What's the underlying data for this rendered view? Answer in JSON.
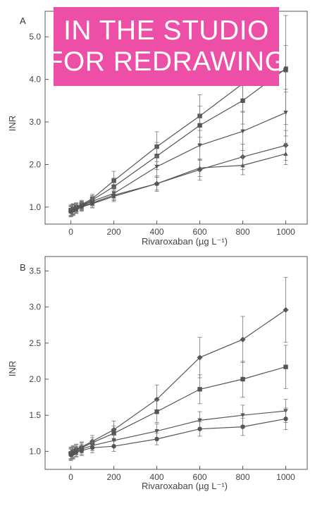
{
  "overlay": {
    "line1": "IN THE STUDIO",
    "line2": "FOR REDRAWING",
    "color": "#ee4fa6"
  },
  "colors": {
    "axis": "#555555",
    "series": "#555555"
  },
  "chart_data": [
    {
      "type": "line",
      "panel_label": "A",
      "xlabel": "Rivaroxaban (µg L⁻¹)",
      "ylabel": "INR",
      "xlim": [
        -120,
        1100
      ],
      "ylim": [
        0.6,
        5.6
      ],
      "xticks": [
        0,
        200,
        400,
        600,
        800,
        1000
      ],
      "xtick_labels": [
        "0",
        "200",
        "400",
        "600",
        "800",
        "1000"
      ],
      "yticks": [
        1.0,
        2.0,
        3.0,
        4.0,
        5.0
      ],
      "ytick_labels": [
        "1.0",
        "2.0",
        "3.0",
        "4.0",
        "5.0"
      ],
      "grid": false,
      "x": [
        0,
        10,
        25,
        50,
        100,
        200,
        400,
        600,
        800,
        1000
      ],
      "series": [
        {
          "marker": "square",
          "values": [
            0.93,
            0.96,
            1.0,
            1.06,
            1.2,
            1.62,
            2.42,
            3.14,
            3.9,
            4.22
          ],
          "err": [
            0.12,
            0.12,
            0.1,
            0.1,
            0.1,
            0.22,
            0.35,
            0.5,
            0.65,
            1.28
          ]
        },
        {
          "marker": "square",
          "values": [
            0.92,
            0.95,
            0.99,
            1.04,
            1.17,
            1.48,
            2.2,
            2.92,
            3.5,
            4.25
          ],
          "err": [
            0.12,
            0.12,
            0.1,
            0.1,
            0.1,
            0.2,
            0.32,
            0.45,
            0.55,
            0.55
          ]
        },
        {
          "marker": "triangle-down",
          "values": [
            0.9,
            0.94,
            0.98,
            1.03,
            1.14,
            1.32,
            1.95,
            2.45,
            2.78,
            3.22
          ],
          "err": [
            0.12,
            0.12,
            0.1,
            0.1,
            0.1,
            0.15,
            0.25,
            0.35,
            0.45,
            0.55
          ]
        },
        {
          "marker": "diamond",
          "values": [
            0.9,
            0.93,
            0.96,
            1.02,
            1.1,
            1.28,
            1.55,
            1.88,
            2.18,
            2.45
          ],
          "err": [
            0.12,
            0.12,
            0.1,
            0.1,
            0.1,
            0.12,
            0.18,
            0.25,
            0.3,
            0.35
          ]
        },
        {
          "marker": "triangle-up",
          "values": [
            0.89,
            0.92,
            0.95,
            1.0,
            1.08,
            1.25,
            1.55,
            1.92,
            1.98,
            2.25
          ],
          "err": [
            0.12,
            0.12,
            0.1,
            0.1,
            0.1,
            0.12,
            0.15,
            0.2,
            0.22,
            0.25
          ]
        }
      ]
    },
    {
      "type": "line",
      "panel_label": "B",
      "xlabel": "Rivaroxaban (µg L⁻¹)",
      "ylabel": "INR",
      "xlim": [
        -120,
        1100
      ],
      "ylim": [
        0.75,
        3.7
      ],
      "xticks": [
        0,
        200,
        400,
        600,
        800,
        1000
      ],
      "xtick_labels": [
        "0",
        "200",
        "400",
        "600",
        "800",
        "1000"
      ],
      "yticks": [
        1.0,
        1.5,
        2.0,
        2.5,
        3.0,
        3.5
      ],
      "ytick_labels": [
        "1.0",
        "1.5",
        "2.0",
        "2.5",
        "3.0",
        "3.5"
      ],
      "grid": false,
      "x": [
        0,
        10,
        25,
        50,
        100,
        200,
        400,
        600,
        800,
        1000
      ],
      "series": [
        {
          "marker": "diamond",
          "values": [
            0.98,
            1.0,
            1.03,
            1.06,
            1.14,
            1.3,
            1.72,
            2.3,
            2.55,
            2.96
          ],
          "err": [
            0.08,
            0.08,
            0.07,
            0.07,
            0.08,
            0.12,
            0.2,
            0.28,
            0.32,
            0.45
          ]
        },
        {
          "marker": "square",
          "values": [
            0.97,
            0.99,
            1.02,
            1.05,
            1.12,
            1.25,
            1.55,
            1.86,
            2.0,
            2.17
          ],
          "err": [
            0.08,
            0.08,
            0.07,
            0.07,
            0.07,
            0.1,
            0.15,
            0.2,
            0.25,
            0.3
          ]
        },
        {
          "marker": "triangle-down",
          "values": [
            0.96,
            0.98,
            1.0,
            1.03,
            1.08,
            1.15,
            1.28,
            1.43,
            1.5,
            1.56
          ],
          "err": [
            0.08,
            0.08,
            0.07,
            0.07,
            0.07,
            0.08,
            0.1,
            0.12,
            0.14,
            0.16
          ]
        },
        {
          "marker": "circle",
          "values": [
            0.95,
            0.97,
            0.99,
            1.01,
            1.05,
            1.07,
            1.17,
            1.31,
            1.34,
            1.45
          ],
          "err": [
            0.08,
            0.08,
            0.07,
            0.07,
            0.07,
            0.07,
            0.08,
            0.1,
            0.12,
            0.15
          ]
        }
      ]
    }
  ]
}
